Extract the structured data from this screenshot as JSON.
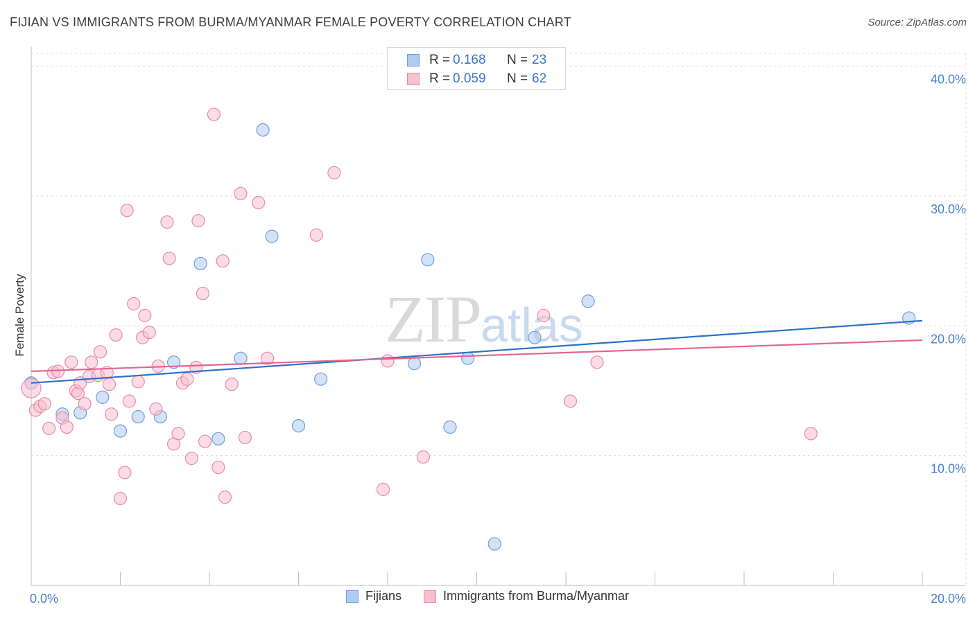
{
  "header": {
    "title": "FIJIAN VS IMMIGRANTS FROM BURMA/MYANMAR FEMALE POVERTY CORRELATION CHART",
    "source": "Source: ZipAtlas.com"
  },
  "watermark": {
    "zip": "ZIP",
    "atlas": "atlas"
  },
  "legend": {
    "rows": [
      {
        "r_label": "R =",
        "r_value": "0.168",
        "n_label": "N =",
        "n_value": "23"
      },
      {
        "r_label": "R =",
        "r_value": "0.059",
        "n_label": "N =",
        "n_value": "62"
      }
    ]
  },
  "colors": {
    "fijian_fill": "#aecbf0",
    "fijian_stroke": "#6d9ee0",
    "fijian_line": "#2d6fcc",
    "burma_fill": "#f7c0cf",
    "burma_stroke": "#e98aa6",
    "burma_line": "#e36591",
    "tick_text": "#4a7fd0",
    "grid": "#dcdcdc"
  },
  "chart_data": {
    "type": "scatter",
    "title": "FIJIAN VS IMMIGRANTS FROM BURMA/MYANMAR FEMALE POVERTY CORRELATION CHART",
    "xlabel": "",
    "ylabel": "Female Poverty",
    "xlim": [
      0,
      20
    ],
    "ylim": [
      0,
      41
    ],
    "x_tick_labels": [
      "0.0%",
      "20.0%"
    ],
    "y_ticks": [
      10,
      20,
      30,
      40
    ],
    "y_tick_labels": [
      "10.0%",
      "20.0%",
      "30.0%",
      "40.0%"
    ],
    "grid": true,
    "legend_position": "top-center",
    "series": [
      {
        "name": "Fijians",
        "r": 0.168,
        "n": 23,
        "trend": {
          "x": [
            0,
            20
          ],
          "y": [
            15.6,
            20.4
          ]
        },
        "points": [
          [
            0.0,
            15.6
          ],
          [
            0.7,
            13.2
          ],
          [
            1.1,
            13.3
          ],
          [
            1.6,
            14.5
          ],
          [
            2.0,
            11.9
          ],
          [
            2.4,
            13.0
          ],
          [
            2.9,
            13.0
          ],
          [
            3.2,
            17.2
          ],
          [
            3.8,
            24.8
          ],
          [
            4.2,
            11.3
          ],
          [
            4.7,
            17.5
          ],
          [
            5.2,
            35.1
          ],
          [
            5.4,
            26.9
          ],
          [
            6.0,
            12.3
          ],
          [
            6.5,
            15.9
          ],
          [
            8.6,
            17.1
          ],
          [
            8.9,
            25.1
          ],
          [
            9.4,
            12.2
          ],
          [
            9.8,
            17.5
          ],
          [
            10.4,
            3.2
          ],
          [
            11.3,
            19.1
          ],
          [
            12.5,
            21.9
          ],
          [
            19.7,
            20.6
          ]
        ]
      },
      {
        "name": "Immigrants from Burma/Myanmar",
        "r": 0.059,
        "n": 62,
        "trend": {
          "x": [
            0,
            20
          ],
          "y": [
            16.5,
            18.9
          ]
        },
        "points": [
          [
            0.0,
            15.2
          ],
          [
            0.1,
            13.5
          ],
          [
            0.2,
            13.8
          ],
          [
            0.3,
            14.0
          ],
          [
            0.4,
            12.1
          ],
          [
            0.5,
            16.4
          ],
          [
            0.6,
            16.5
          ],
          [
            0.7,
            12.9
          ],
          [
            0.8,
            12.2
          ],
          [
            0.9,
            17.2
          ],
          [
            1.0,
            15.0
          ],
          [
            1.05,
            14.8
          ],
          [
            1.1,
            15.6
          ],
          [
            1.2,
            14.0
          ],
          [
            1.3,
            16.1
          ],
          [
            1.35,
            17.2
          ],
          [
            1.5,
            16.2
          ],
          [
            1.55,
            18.0
          ],
          [
            1.7,
            16.4
          ],
          [
            1.75,
            15.5
          ],
          [
            1.8,
            13.2
          ],
          [
            1.9,
            19.3
          ],
          [
            2.0,
            6.7
          ],
          [
            2.1,
            8.7
          ],
          [
            2.15,
            28.9
          ],
          [
            2.2,
            14.2
          ],
          [
            2.3,
            21.7
          ],
          [
            2.4,
            15.7
          ],
          [
            2.5,
            19.1
          ],
          [
            2.55,
            20.8
          ],
          [
            2.65,
            19.5
          ],
          [
            2.8,
            13.6
          ],
          [
            2.85,
            16.9
          ],
          [
            3.05,
            28.0
          ],
          [
            3.1,
            25.2
          ],
          [
            3.2,
            10.9
          ],
          [
            3.3,
            11.7
          ],
          [
            3.4,
            15.6
          ],
          [
            3.5,
            15.9
          ],
          [
            3.6,
            9.8
          ],
          [
            3.7,
            16.8
          ],
          [
            3.75,
            28.1
          ],
          [
            3.85,
            22.5
          ],
          [
            3.9,
            11.1
          ],
          [
            4.1,
            36.3
          ],
          [
            4.2,
            9.1
          ],
          [
            4.3,
            25.0
          ],
          [
            4.35,
            6.8
          ],
          [
            4.5,
            15.5
          ],
          [
            4.7,
            30.2
          ],
          [
            4.8,
            11.4
          ],
          [
            5.1,
            29.5
          ],
          [
            5.3,
            17.5
          ],
          [
            6.4,
            27.0
          ],
          [
            6.8,
            31.8
          ],
          [
            7.9,
            7.4
          ],
          [
            8.0,
            17.3
          ],
          [
            8.8,
            9.9
          ],
          [
            11.5,
            20.8
          ],
          [
            12.1,
            14.2
          ],
          [
            12.7,
            17.2
          ],
          [
            17.5,
            11.7
          ]
        ]
      }
    ]
  }
}
